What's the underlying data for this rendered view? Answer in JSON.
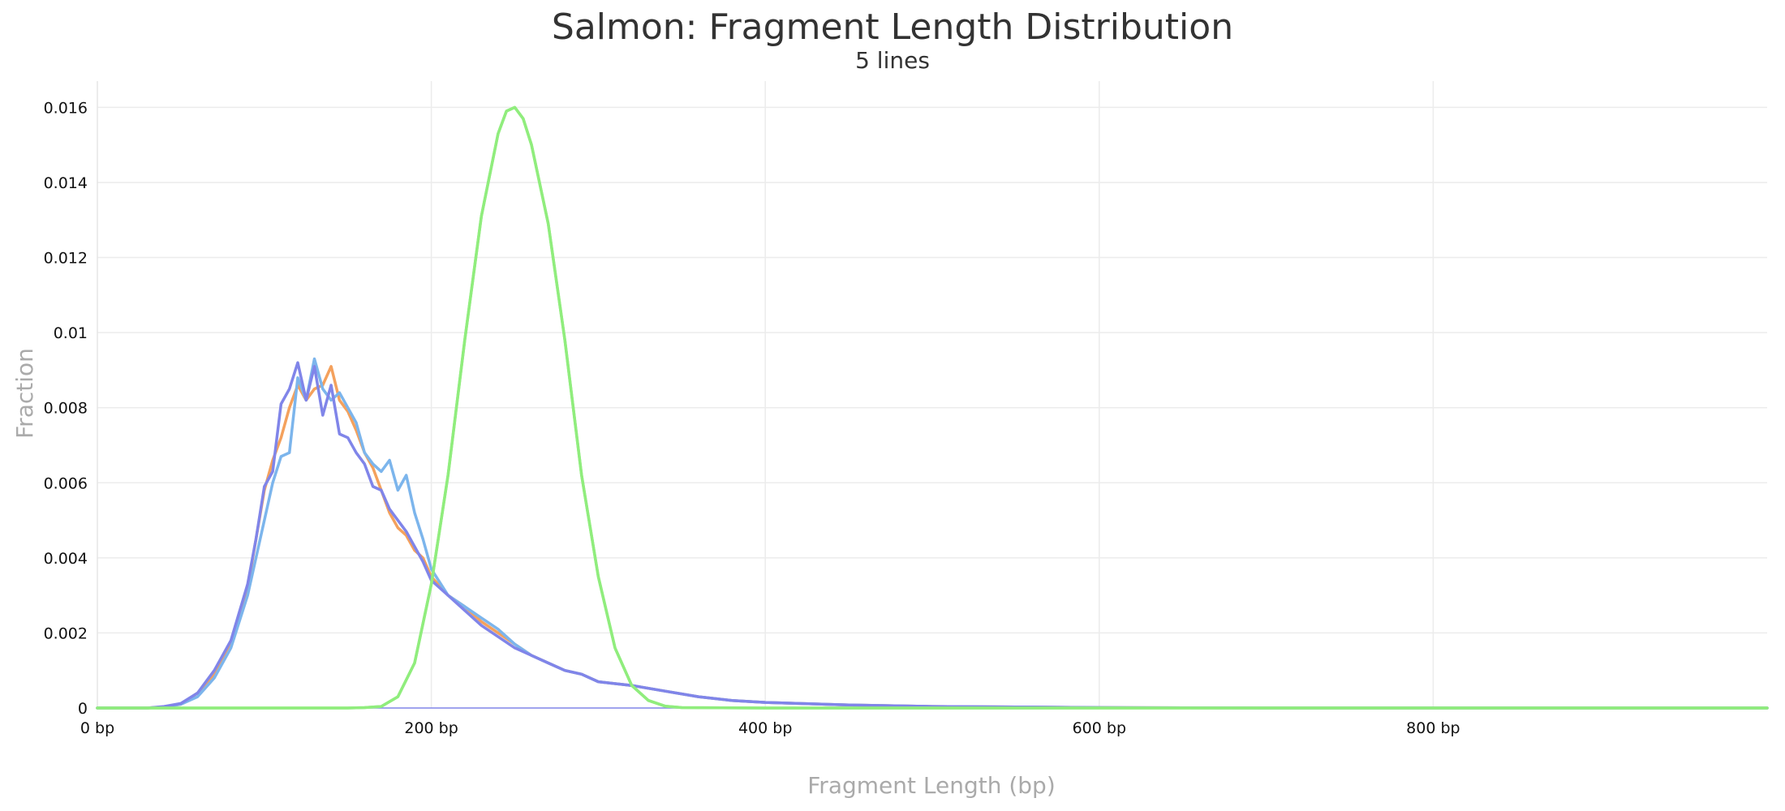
{
  "chart_data": {
    "type": "line",
    "title": "Salmon: Fragment Length Distribution",
    "subtitle": "5 lines",
    "xlabel": "Fragment Length (bp)",
    "ylabel": "Fraction",
    "xlim": [
      0,
      1000
    ],
    "ylim": [
      0,
      0.0167
    ],
    "grid": true,
    "x_ticks": [
      {
        "value": 0,
        "label": "0 bp"
      },
      {
        "value": 200,
        "label": "200 bp"
      },
      {
        "value": 400,
        "label": "400 bp"
      },
      {
        "value": 600,
        "label": "600 bp"
      },
      {
        "value": 800,
        "label": "800 bp"
      }
    ],
    "y_ticks": [
      {
        "value": 0,
        "label": "0"
      },
      {
        "value": 0.002,
        "label": "0.002"
      },
      {
        "value": 0.004,
        "label": "0.004"
      },
      {
        "value": 0.006,
        "label": "0.006"
      },
      {
        "value": 0.008,
        "label": "0.008"
      },
      {
        "value": 0.01,
        "label": "0.01"
      },
      {
        "value": 0.012,
        "label": "0.012"
      },
      {
        "value": 0.014,
        "label": "0.014"
      },
      {
        "value": 0.016,
        "label": "0.016"
      }
    ],
    "series": [
      {
        "color": "#f4a15d",
        "x": [
          0,
          30,
          40,
          50,
          60,
          70,
          80,
          90,
          95,
          100,
          105,
          110,
          115,
          120,
          125,
          130,
          135,
          140,
          145,
          150,
          155,
          160,
          165,
          170,
          175,
          180,
          185,
          190,
          195,
          200,
          210,
          220,
          230,
          240,
          250,
          260,
          270,
          280,
          290,
          300,
          320,
          340,
          360,
          380,
          400,
          450,
          500,
          600,
          700,
          1000
        ],
        "y": [
          0,
          0,
          3e-05,
          0.0001,
          0.0004,
          0.0009,
          0.0017,
          0.0032,
          0.0045,
          0.0058,
          0.0066,
          0.0072,
          0.008,
          0.0086,
          0.0082,
          0.0085,
          0.0086,
          0.0091,
          0.0082,
          0.0079,
          0.0074,
          0.0068,
          0.0064,
          0.0058,
          0.0052,
          0.0048,
          0.0046,
          0.0042,
          0.004,
          0.0035,
          0.003,
          0.0027,
          0.0023,
          0.002,
          0.0017,
          0.0014,
          0.0012,
          0.001,
          0.0009,
          0.0007,
          0.0006,
          0.00045,
          0.0003,
          0.0002,
          0.00015,
          8e-05,
          4e-05,
          1e-05,
          0,
          0
        ]
      },
      {
        "color": "#7cb5ec",
        "x": [
          0,
          30,
          40,
          50,
          60,
          70,
          80,
          90,
          95,
          100,
          105,
          110,
          115,
          120,
          125,
          130,
          135,
          140,
          145,
          150,
          155,
          160,
          165,
          170,
          175,
          180,
          185,
          190,
          195,
          200,
          210,
          220,
          230,
          240,
          250,
          260,
          270,
          280,
          290,
          300,
          320,
          340,
          360,
          380,
          400,
          450,
          500,
          600,
          700,
          1000
        ],
        "y": [
          0,
          0,
          3e-05,
          0.0001,
          0.0003,
          0.0008,
          0.0016,
          0.003,
          0.004,
          0.005,
          0.006,
          0.0067,
          0.0068,
          0.0088,
          0.0082,
          0.0093,
          0.0085,
          0.0082,
          0.0084,
          0.008,
          0.0076,
          0.0068,
          0.0065,
          0.0063,
          0.0066,
          0.0058,
          0.0062,
          0.0052,
          0.0045,
          0.0037,
          0.003,
          0.0027,
          0.0024,
          0.0021,
          0.0017,
          0.0014,
          0.0012,
          0.001,
          0.0009,
          0.0007,
          0.0006,
          0.00045,
          0.0003,
          0.0002,
          0.00015,
          8e-05,
          4e-05,
          1e-05,
          0,
          0
        ]
      },
      {
        "color": "#8085e9",
        "x": [
          0,
          30,
          40,
          50,
          60,
          70,
          80,
          90,
          95,
          100,
          105,
          110,
          115,
          120,
          125,
          130,
          135,
          140,
          145,
          150,
          155,
          160,
          165,
          170,
          175,
          180,
          185,
          190,
          195,
          200,
          210,
          220,
          230,
          240,
          250,
          260,
          270,
          280,
          290,
          300,
          320,
          340,
          360,
          380,
          400,
          450,
          500,
          600,
          700,
          1000
        ],
        "y": [
          0,
          0,
          4e-05,
          0.00012,
          0.0004,
          0.001,
          0.0018,
          0.0033,
          0.0045,
          0.0059,
          0.0063,
          0.0081,
          0.0085,
          0.0092,
          0.0082,
          0.0091,
          0.0078,
          0.0086,
          0.0073,
          0.0072,
          0.0068,
          0.0065,
          0.0059,
          0.0058,
          0.0053,
          0.005,
          0.0047,
          0.0043,
          0.0039,
          0.0034,
          0.003,
          0.0026,
          0.0022,
          0.0019,
          0.0016,
          0.0014,
          0.0012,
          0.001,
          0.0009,
          0.0007,
          0.0006,
          0.00045,
          0.0003,
          0.0002,
          0.00015,
          8e-05,
          4e-05,
          1e-05,
          0,
          0
        ]
      },
      {
        "color": "#90ed7d",
        "x": [
          0,
          150,
          160,
          170,
          180,
          190,
          200,
          210,
          220,
          230,
          240,
          245,
          250,
          255,
          260,
          270,
          280,
          290,
          300,
          310,
          320,
          330,
          340,
          350,
          400,
          1000
        ],
        "y": [
          0,
          0,
          1e-05,
          4e-05,
          0.0003,
          0.0012,
          0.0033,
          0.0062,
          0.0098,
          0.0131,
          0.0153,
          0.0159,
          0.016,
          0.0157,
          0.015,
          0.0129,
          0.0098,
          0.0062,
          0.0035,
          0.0016,
          0.0006,
          0.0002,
          5e-05,
          1e-05,
          0,
          0
        ]
      },
      {
        "color": "#90ed7d",
        "x": [
          0,
          150,
          160,
          170,
          180,
          190,
          200,
          210,
          220,
          230,
          240,
          245,
          250,
          255,
          260,
          270,
          280,
          290,
          300,
          310,
          320,
          330,
          340,
          350,
          400,
          1000
        ],
        "y": [
          0,
          0,
          1e-05,
          4e-05,
          0.0003,
          0.0012,
          0.0033,
          0.0062,
          0.0098,
          0.0131,
          0.0153,
          0.0159,
          0.016,
          0.0157,
          0.015,
          0.0129,
          0.0098,
          0.0062,
          0.0035,
          0.0016,
          0.0006,
          0.0002,
          5e-05,
          1e-05,
          0,
          0
        ]
      }
    ]
  }
}
